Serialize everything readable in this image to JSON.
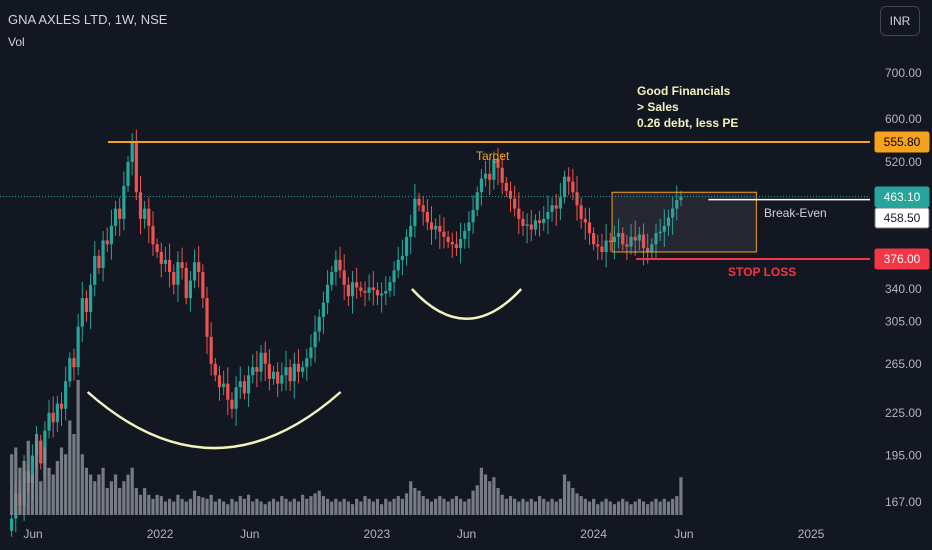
{
  "header": {
    "title": "GNA AXLES LTD, 1W, NSE",
    "volume_label": "Vol",
    "currency_button": "INR"
  },
  "colors": {
    "background": "#131722",
    "up": "#26a69a",
    "down": "#ef5350",
    "volume": "#8a8d94",
    "resistance": "#f7a21b",
    "stop_loss": "#f23645",
    "break_even": "#ffffff",
    "annotation_text": "#f3f3bf",
    "axis_text": "#b2b5be"
  },
  "chart_data": {
    "type": "candlestick",
    "timeframe": "1W",
    "scale": "log",
    "y_ticks": [
      167,
      195,
      225,
      265,
      305,
      600,
      700
    ],
    "y_tick_labels": [
      "167.00",
      "195.00",
      "225.00",
      "265.00",
      "305.00",
      "600.00",
      "700.00"
    ],
    "y_ticks_partial": [
      {
        "value": 520,
        "label": "520.00"
      },
      {
        "value": 340,
        "label": "340.00"
      }
    ],
    "x_ticks": [
      {
        "label": "Jun",
        "date": "2021-06"
      },
      {
        "label": "2022",
        "date": "2022-01"
      },
      {
        "label": "Jun",
        "date": "2022-06"
      },
      {
        "label": "2023",
        "date": "2023-01"
      },
      {
        "label": "Jun",
        "date": "2023-06"
      },
      {
        "label": "2024",
        "date": "2024-01"
      },
      {
        "label": "Jun",
        "date": "2024-06"
      },
      {
        "label": "2025",
        "date": "2025-01"
      }
    ],
    "x_range": [
      "2021-04",
      "2025-06"
    ],
    "y_range": [
      160,
      820
    ],
    "start_week": "2021-04-26",
    "weekly_close": [
      158,
      172,
      165,
      185,
      178,
      195,
      205,
      190,
      212,
      225,
      218,
      232,
      228,
      250,
      270,
      262,
      300,
      330,
      315,
      345,
      380,
      365,
      400,
      395,
      420,
      445,
      430,
      480,
      520,
      555,
      470,
      430,
      445,
      420,
      395,
      385,
      370,
      375,
      360,
      345,
      372,
      365,
      330,
      350,
      372,
      360,
      330,
      290,
      265,
      255,
      245,
      248,
      235,
      228,
      245,
      250,
      240,
      255,
      262,
      258,
      275,
      265,
      252,
      258,
      248,
      255,
      262,
      250,
      265,
      258,
      262,
      270,
      280,
      295,
      310,
      325,
      345,
      360,
      375,
      362,
      345,
      332,
      348,
      342,
      338,
      336,
      342,
      339,
      333,
      335,
      338,
      348,
      362,
      375,
      380,
      405,
      420,
      460,
      450,
      440,
      425,
      415,
      420,
      412,
      405,
      398,
      395,
      390,
      402,
      413,
      425,
      443,
      470,
      492,
      500,
      490,
      525,
      510,
      485,
      472,
      460,
      445,
      430,
      420,
      422,
      415,
      428,
      424,
      430,
      440,
      450,
      445,
      462,
      495,
      487,
      470,
      450,
      430,
      425,
      410,
      395,
      392,
      385,
      400,
      398,
      405,
      410,
      395,
      392,
      405,
      400,
      408,
      390,
      385,
      395,
      410,
      412,
      420,
      432,
      445,
      458,
      463
    ],
    "weekly_volume_relative": [
      0.45,
      0.5,
      0.35,
      0.4,
      0.55,
      0.3,
      0.6,
      0.25,
      0.5,
      0.35,
      0.3,
      0.4,
      0.5,
      0.45,
      0.7,
      0.6,
      1.0,
      0.45,
      0.35,
      0.3,
      0.25,
      0.3,
      0.35,
      0.2,
      0.25,
      0.3,
      0.2,
      0.25,
      0.3,
      0.35,
      0.2,
      0.15,
      0.2,
      0.15,
      0.12,
      0.15,
      0.14,
      0.1,
      0.12,
      0.1,
      0.15,
      0.12,
      0.1,
      0.12,
      0.18,
      0.14,
      0.13,
      0.12,
      0.15,
      0.1,
      0.12,
      0.1,
      0.08,
      0.12,
      0.1,
      0.14,
      0.12,
      0.15,
      0.1,
      0.12,
      0.1,
      0.08,
      0.1,
      0.12,
      0.1,
      0.14,
      0.12,
      0.1,
      0.12,
      0.1,
      0.15,
      0.12,
      0.14,
      0.16,
      0.18,
      0.14,
      0.12,
      0.1,
      0.12,
      0.1,
      0.12,
      0.1,
      0.08,
      0.12,
      0.1,
      0.14,
      0.12,
      0.1,
      0.12,
      0.08,
      0.12,
      0.1,
      0.12,
      0.14,
      0.12,
      0.16,
      0.25,
      0.2,
      0.18,
      0.14,
      0.12,
      0.1,
      0.12,
      0.14,
      0.12,
      0.1,
      0.12,
      0.14,
      0.12,
      0.1,
      0.12,
      0.18,
      0.22,
      0.35,
      0.3,
      0.25,
      0.28,
      0.2,
      0.15,
      0.12,
      0.14,
      0.12,
      0.1,
      0.12,
      0.1,
      0.12,
      0.1,
      0.14,
      0.12,
      0.1,
      0.12,
      0.1,
      0.12,
      0.3,
      0.25,
      0.2,
      0.16,
      0.14,
      0.12,
      0.1,
      0.12,
      0.08,
      0.1,
      0.12,
      0.1,
      0.08,
      0.1,
      0.12,
      0.1,
      0.08,
      0.1,
      0.12,
      0.1,
      0.08,
      0.1,
      0.12,
      0.1,
      0.12,
      0.1,
      0.12,
      0.14,
      0.28
    ],
    "horizontal_levels": [
      {
        "name": "target",
        "value": 555.8,
        "label": "555.80",
        "color": "#f7a21b"
      },
      {
        "name": "last_price",
        "value": 463.1,
        "label": "463.10",
        "color": "#26a69a"
      },
      {
        "name": "break_even",
        "value": 458.5,
        "label": "458.50",
        "color": "#ffffff"
      },
      {
        "name": "stop_loss",
        "value": 376.0,
        "label": "376.00",
        "color": "#f23645"
      }
    ],
    "annotations": {
      "target": "Target",
      "break_even": "Break-Even",
      "stop_loss": "STOP LOSS",
      "notes": [
        "Good Financials",
        "> Sales",
        "0.26 debt, less PE"
      ]
    },
    "consolidation_box": {
      "start": "2024-02",
      "end": "2024-10",
      "high": 470,
      "low": 385
    },
    "cup_arcs": [
      {
        "start": "2021-09",
        "end": "2022-11",
        "bottom": 200
      },
      {
        "start": "2023-03",
        "end": "2023-09",
        "bottom": 308
      }
    ]
  }
}
